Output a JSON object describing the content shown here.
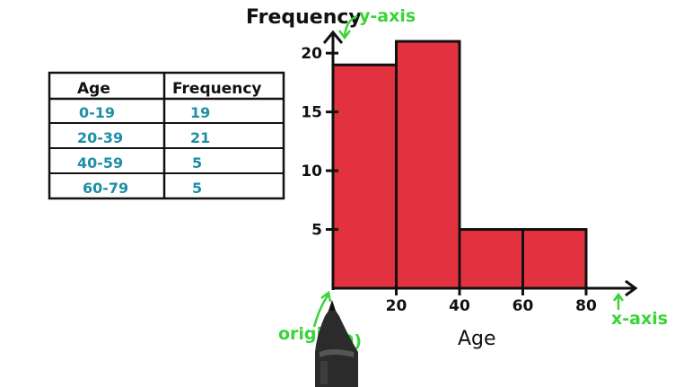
{
  "table": {
    "headers": [
      "Age",
      "Frequency"
    ],
    "rows": [
      [
        "0-19",
        "19"
      ],
      [
        "20-39",
        "21"
      ],
      [
        "40-59",
        "5"
      ],
      [
        "60-79",
        "5"
      ]
    ]
  },
  "annotations": {
    "y_axis": "y-axis",
    "x_axis": "x-axis",
    "origin": "origin",
    "origin_coord": "(0,0)"
  },
  "colors": {
    "bar_fill": "#e3323f",
    "annotation": "#38d438",
    "table_text": "#1f8fa6",
    "ink": "#111111"
  },
  "chart_data": {
    "type": "bar",
    "subtype": "histogram",
    "xlabel": "Age",
    "ylabel": "Frequency",
    "bins": [
      [
        0,
        20
      ],
      [
        20,
        40
      ],
      [
        40,
        60
      ],
      [
        60,
        80
      ]
    ],
    "values": [
      19,
      21,
      5,
      5
    ],
    "x_ticks": [
      "20",
      "40",
      "60",
      "80"
    ],
    "y_ticks": [
      "5",
      "10",
      "15",
      "20"
    ],
    "xlim": [
      0,
      80
    ],
    "ylim": [
      0,
      22
    ],
    "grid": false
  }
}
